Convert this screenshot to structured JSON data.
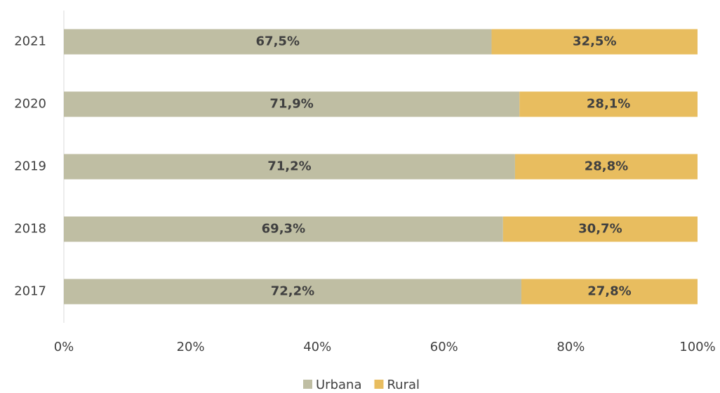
{
  "chart_data": {
    "type": "stacked-bar-horizontal",
    "categories": [
      "2021",
      "2020",
      "2019",
      "2018",
      "2017"
    ],
    "series": [
      {
        "name": "Urbana",
        "color": "#bfbea3",
        "values": [
          67.5,
          71.9,
          71.2,
          69.3,
          72.2
        ],
        "value_labels": [
          "67,5%",
          "71,9%",
          "71,2%",
          "69,3%",
          "72,2%"
        ]
      },
      {
        "name": "Rural",
        "color": "#e8bd5f",
        "values": [
          32.5,
          28.1,
          28.8,
          30.7,
          27.8
        ],
        "value_labels": [
          "32,5%",
          "28,1%",
          "28,8%",
          "30,7%",
          "27,8%"
        ]
      }
    ],
    "xlim": [
      0,
      100
    ],
    "xticks": [
      {
        "value": 0,
        "label": "0%"
      },
      {
        "value": 20,
        "label": "20%"
      },
      {
        "value": 40,
        "label": "40%"
      },
      {
        "value": 60,
        "label": "60%"
      },
      {
        "value": 80,
        "label": "80%"
      },
      {
        "value": 100,
        "label": "100%"
      }
    ],
    "legend": "bottom"
  }
}
